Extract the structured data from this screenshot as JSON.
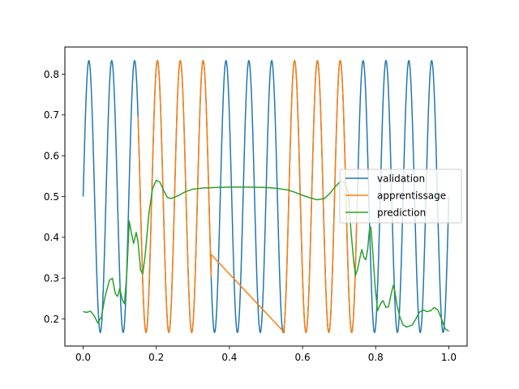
{
  "chart_data": {
    "type": "line",
    "title": "",
    "xlabel": "",
    "ylabel": "",
    "xlim": [
      -0.05,
      1.05
    ],
    "ylim": [
      0.1335,
      0.8665
    ],
    "grid": false,
    "legend_position": "center-right",
    "x_ticks": [
      "0.0",
      "0.2",
      "0.4",
      "0.6",
      "0.8",
      "1.0"
    ],
    "y_ticks": [
      "0.2",
      "0.3",
      "0.4",
      "0.5",
      "0.6",
      "0.7",
      "0.8"
    ],
    "x_tick_values": [
      0.0,
      0.2,
      0.4,
      0.6,
      0.8,
      1.0
    ],
    "y_tick_values": [
      0.2,
      0.3,
      0.4,
      0.5,
      0.6,
      0.7,
      0.8
    ],
    "series": [
      {
        "name": "validation",
        "color": "#1f77b4",
        "function": "0.5 + 0.3333*sin(2*pi*16*x)",
        "x_range": [
          0.0,
          1.0
        ],
        "samples": 1000
      },
      {
        "name": "apprentissage",
        "color": "#ff7f0e",
        "function": "0.5 + 0.3333*sin(2*pi*16*x)",
        "segments": [
          [
            0.15,
            0.35
          ],
          [
            0.55,
            0.75
          ]
        ],
        "bridge": [
          [
            0.35,
            0.358
          ],
          [
            0.55,
            0.167
          ]
        ],
        "samples": 400
      },
      {
        "name": "prediction",
        "color": "#2ca02c",
        "points": [
          [
            0.0,
            0.218
          ],
          [
            0.01,
            0.216
          ],
          [
            0.02,
            0.219
          ],
          [
            0.03,
            0.208
          ],
          [
            0.04,
            0.19
          ],
          [
            0.05,
            0.205
          ],
          [
            0.06,
            0.255
          ],
          [
            0.072,
            0.295
          ],
          [
            0.08,
            0.3
          ],
          [
            0.088,
            0.262
          ],
          [
            0.094,
            0.255
          ],
          [
            0.1,
            0.275
          ],
          [
            0.108,
            0.245
          ],
          [
            0.113,
            0.237
          ],
          [
            0.12,
            0.32
          ],
          [
            0.126,
            0.44
          ],
          [
            0.132,
            0.41
          ],
          [
            0.138,
            0.385
          ],
          [
            0.145,
            0.412
          ],
          [
            0.15,
            0.39
          ],
          [
            0.157,
            0.32
          ],
          [
            0.163,
            0.31
          ],
          [
            0.17,
            0.36
          ],
          [
            0.18,
            0.46
          ],
          [
            0.19,
            0.52
          ],
          [
            0.2,
            0.54
          ],
          [
            0.21,
            0.535
          ],
          [
            0.22,
            0.515
          ],
          [
            0.23,
            0.498
          ],
          [
            0.24,
            0.495
          ],
          [
            0.26,
            0.502
          ],
          [
            0.28,
            0.512
          ],
          [
            0.3,
            0.518
          ],
          [
            0.33,
            0.521
          ],
          [
            0.36,
            0.522
          ],
          [
            0.4,
            0.523
          ],
          [
            0.45,
            0.523
          ],
          [
            0.5,
            0.522
          ],
          [
            0.53,
            0.52
          ],
          [
            0.56,
            0.516
          ],
          [
            0.58,
            0.51
          ],
          [
            0.6,
            0.503
          ],
          [
            0.62,
            0.497
          ],
          [
            0.64,
            0.492
          ],
          [
            0.66,
            0.495
          ],
          [
            0.675,
            0.508
          ],
          [
            0.69,
            0.525
          ],
          [
            0.705,
            0.538
          ],
          [
            0.715,
            0.534
          ],
          [
            0.725,
            0.51
          ],
          [
            0.733,
            0.41
          ],
          [
            0.74,
            0.34
          ],
          [
            0.745,
            0.307
          ],
          [
            0.75,
            0.32
          ],
          [
            0.757,
            0.35
          ],
          [
            0.762,
            0.37
          ],
          [
            0.768,
            0.35
          ],
          [
            0.773,
            0.345
          ],
          [
            0.778,
            0.37
          ],
          [
            0.783,
            0.42
          ],
          [
            0.787,
            0.425
          ],
          [
            0.792,
            0.365
          ],
          [
            0.798,
            0.285
          ],
          [
            0.805,
            0.22
          ],
          [
            0.81,
            0.23
          ],
          [
            0.815,
            0.24
          ],
          [
            0.82,
            0.245
          ],
          [
            0.828,
            0.228
          ],
          [
            0.835,
            0.23
          ],
          [
            0.842,
            0.26
          ],
          [
            0.848,
            0.282
          ],
          [
            0.852,
            0.27
          ],
          [
            0.858,
            0.235
          ],
          [
            0.866,
            0.205
          ],
          [
            0.875,
            0.185
          ],
          [
            0.885,
            0.18
          ],
          [
            0.9,
            0.185
          ],
          [
            0.91,
            0.2
          ],
          [
            0.92,
            0.217
          ],
          [
            0.93,
            0.222
          ],
          [
            0.94,
            0.218
          ],
          [
            0.95,
            0.22
          ],
          [
            0.96,
            0.228
          ],
          [
            0.97,
            0.222
          ],
          [
            0.98,
            0.2
          ],
          [
            0.99,
            0.176
          ],
          [
            1.0,
            0.17
          ]
        ]
      }
    ]
  }
}
